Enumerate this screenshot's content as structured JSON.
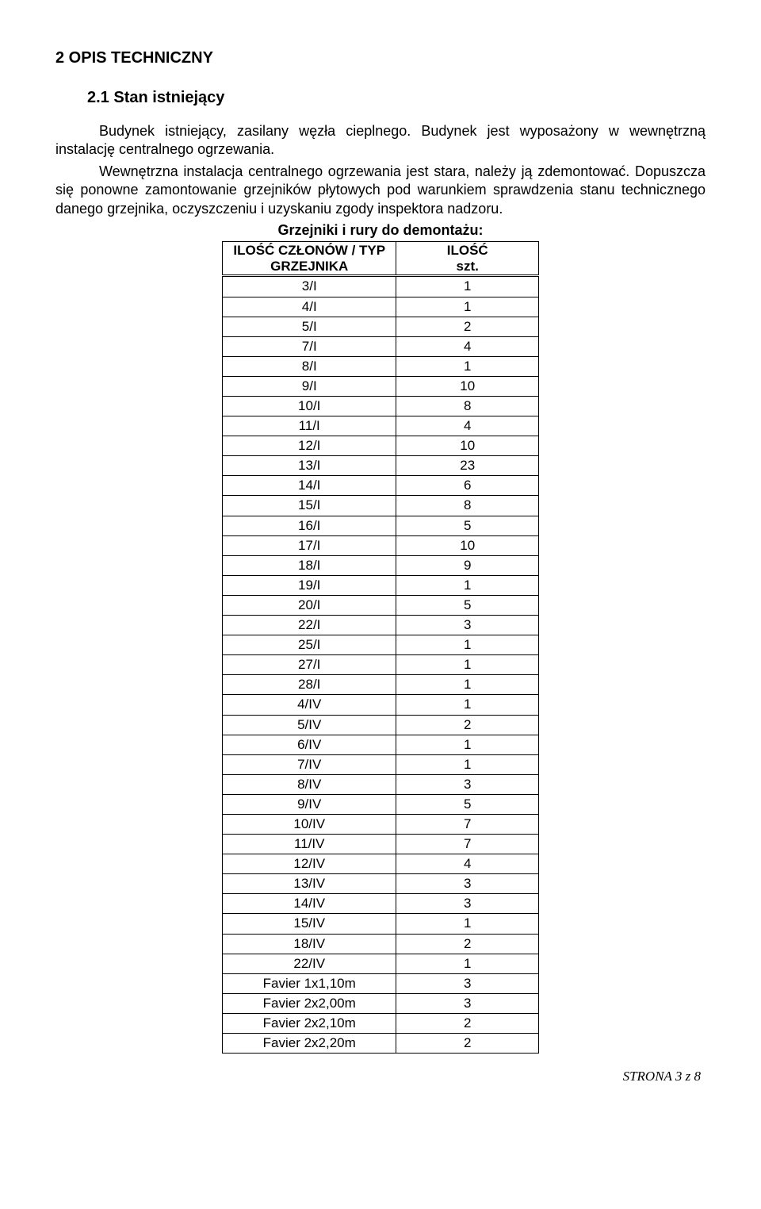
{
  "heading1": "2   OPIS TECHNICZNY",
  "heading2": "2.1   Stan istniejący",
  "para1": "Budynek istniejący, zasilany węzła cieplnego. Budynek jest wyposażony w wewnętrzną instalację centralnego ogrzewania.",
  "para2": "Wewnętrzna instalacja centralnego ogrzewania jest stara, należy ją zdemontować. Dopuszcza się ponowne zamontowanie grzejników płytowych pod warunkiem sprawdzenia stanu technicznego danego grzejnika, oczyszczeniu i uzyskaniu zgody inspektora nadzoru.",
  "table_title": "Grzejniki i rury do demontażu:",
  "table": {
    "header_a_line1": "ILOŚĆ CZŁONÓW / TYP",
    "header_a_line2": "GRZEJNIKA",
    "header_b_line1": "ILOŚĆ",
    "header_b_line2": "szt.",
    "rows": [
      {
        "a": "3/I",
        "b": "1"
      },
      {
        "a": "4/I",
        "b": "1"
      },
      {
        "a": "5/I",
        "b": "2"
      },
      {
        "a": "7/I",
        "b": "4"
      },
      {
        "a": "8/I",
        "b": "1"
      },
      {
        "a": "9/I",
        "b": "10"
      },
      {
        "a": "10/I",
        "b": "8"
      },
      {
        "a": "11/I",
        "b": "4"
      },
      {
        "a": "12/I",
        "b": "10"
      },
      {
        "a": "13/I",
        "b": "23"
      },
      {
        "a": "14/I",
        "b": "6"
      },
      {
        "a": "15/I",
        "b": "8"
      },
      {
        "a": "16/I",
        "b": "5"
      },
      {
        "a": "17/I",
        "b": "10"
      },
      {
        "a": "18/I",
        "b": "9"
      },
      {
        "a": "19/I",
        "b": "1"
      },
      {
        "a": "20/I",
        "b": "5"
      },
      {
        "a": "22/I",
        "b": "3"
      },
      {
        "a": "25/I",
        "b": "1"
      },
      {
        "a": "27/I",
        "b": "1"
      },
      {
        "a": "28/I",
        "b": "1"
      },
      {
        "a": "4/IV",
        "b": "1"
      },
      {
        "a": "5/IV",
        "b": "2"
      },
      {
        "a": "6/IV",
        "b": "1"
      },
      {
        "a": "7/IV",
        "b": "1"
      },
      {
        "a": "8/IV",
        "b": "3"
      },
      {
        "a": "9/IV",
        "b": "5"
      },
      {
        "a": "10/IV",
        "b": "7"
      },
      {
        "a": "11/IV",
        "b": "7"
      },
      {
        "a": "12/IV",
        "b": "4"
      },
      {
        "a": "13/IV",
        "b": "3"
      },
      {
        "a": "14/IV",
        "b": "3"
      },
      {
        "a": "15/IV",
        "b": "1"
      },
      {
        "a": "18/IV",
        "b": "2"
      },
      {
        "a": "22/IV",
        "b": "1"
      },
      {
        "a": "Favier 1x1,10m",
        "b": "3"
      },
      {
        "a": "Favier 2x2,00m",
        "b": "3"
      },
      {
        "a": "Favier 2x2,10m",
        "b": "2"
      },
      {
        "a": "Favier 2x2,20m",
        "b": "2"
      }
    ]
  },
  "footer": "STRONA 3 z 8"
}
